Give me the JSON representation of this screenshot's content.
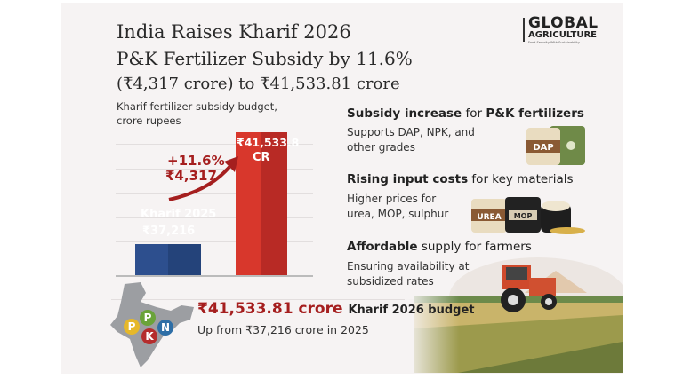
{
  "header": {
    "title_line1": "India Raises Kharif 2026",
    "title_line2": "P&K Fertilizer Subsidy by 11.6%",
    "title_line3": "(₹4,317 crore) to ₹41,533.81 crore"
  },
  "logo": {
    "name": "GLOBAL",
    "name2": "AGRICULTURE",
    "tagline": "Food Security With Sustainability"
  },
  "chart": {
    "caption_line1": "Kharif fertilizer subsidy budget,",
    "caption_line2": "crore rupees",
    "change_pct": "+11.6%",
    "change_abs": "₹4,317",
    "bar1_label": "Kharif 2025",
    "bar1_value": "₹37,216",
    "bar2_value": "₹41,533.8",
    "bar2_unit": "CR"
  },
  "chart_data": {
    "type": "bar",
    "categories": [
      "Kharif 2025",
      "Kharif 2026"
    ],
    "values": [
      37216,
      41533.81
    ],
    "title": "Kharif fertilizer subsidy budget, crore rupees",
    "colors": [
      "#2d4f8e",
      "#d8372c"
    ]
  },
  "points": [
    {
      "bold1": "Subsidy increase",
      "rest": " for ",
      "bold2": "P&K fertilizers",
      "desc1": "Supports DAP, NPK, and",
      "desc2": "other grades",
      "bag1": "DAP"
    },
    {
      "bold1": "Rising input costs",
      "rest": " for key materials",
      "desc1": "Higher prices for",
      "desc2": "urea, MOP, sulphur",
      "bag1": "UREA",
      "bag2": "MOP"
    },
    {
      "bold1": "Affordable",
      "rest": " supply for farmers",
      "desc1": "Ensuring availability at",
      "desc2": "subsidized rates"
    }
  ],
  "footer": {
    "amount": "₹41,533.81 crore",
    "amount_label": "Kharif 2026 budget",
    "subtext": "Up from ₹37,216 crore in 2025",
    "map_badges": [
      "P",
      "P",
      "K",
      "N"
    ]
  },
  "colors": {
    "accent_red": "#a51f1f",
    "bar_blue": "#2d4f8e",
    "bar_red": "#d8372c",
    "background": "#f6f3f3"
  }
}
